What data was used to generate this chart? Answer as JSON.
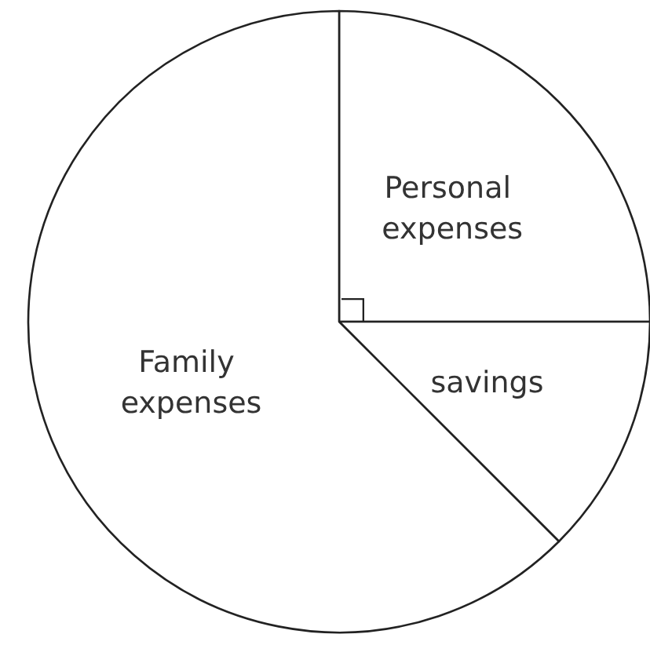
{
  "chart_data": {
    "type": "pie",
    "categories": [
      "Personal expenses",
      "savings",
      "Family expenses"
    ],
    "values": [
      25,
      12.5,
      62.5
    ],
    "colors": [
      "#ffffff",
      "#ffffff",
      "#ffffff"
    ]
  }
}
